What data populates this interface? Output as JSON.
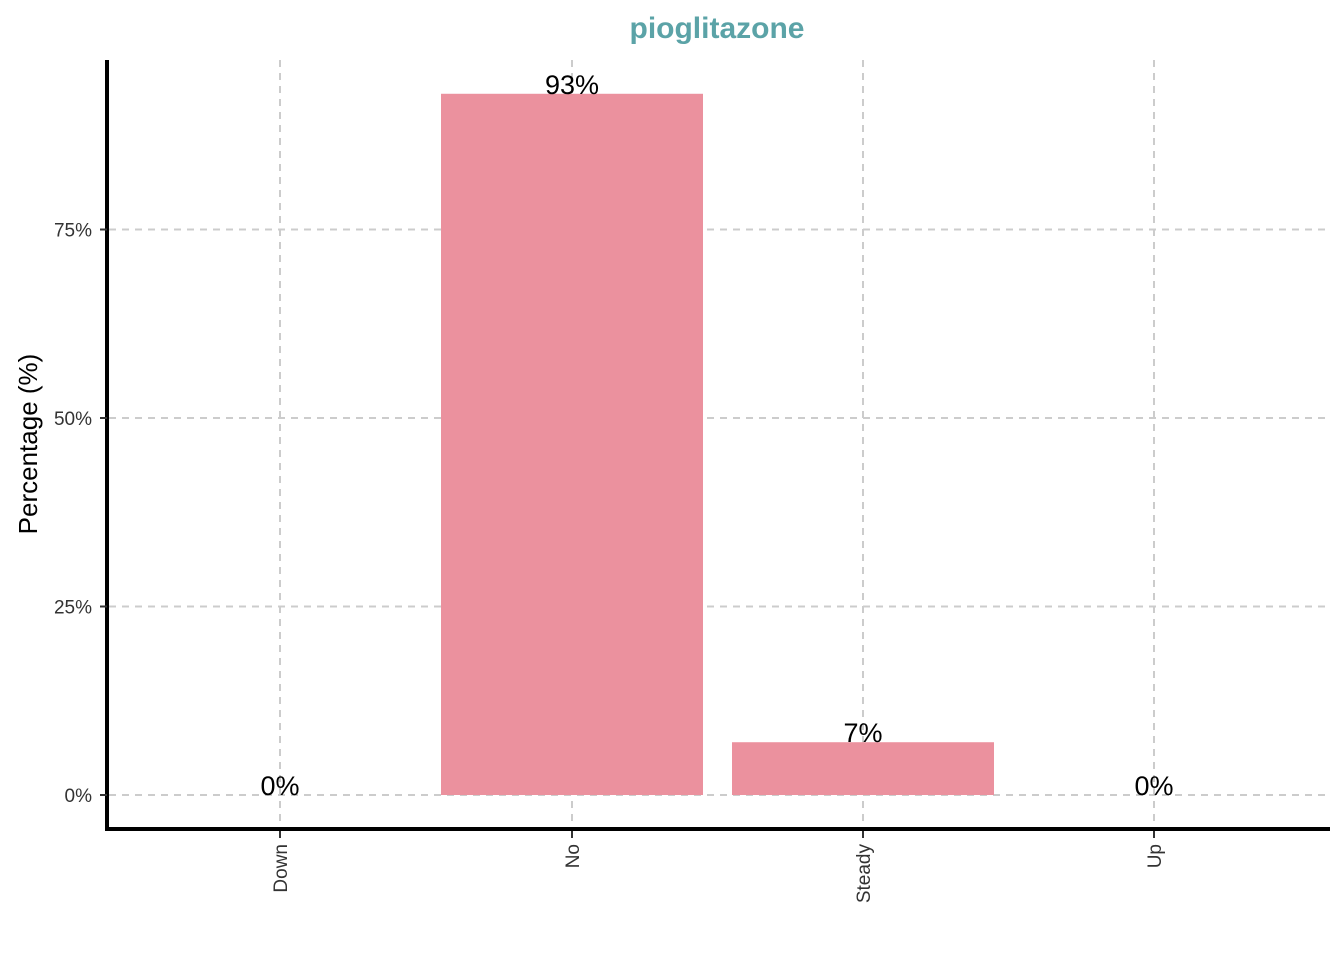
{
  "chart_data": {
    "type": "bar",
    "title": "pioglitazone",
    "xlabel": "",
    "ylabel": "Percentage (%)",
    "categories": [
      "Down",
      "No",
      "Steady",
      "Up"
    ],
    "values": [
      0,
      93,
      7,
      0
    ],
    "data_labels": [
      "0%",
      "93%",
      "7%",
      "0%"
    ],
    "ylim": [
      0,
      97
    ],
    "yticks": [
      0,
      25,
      50,
      75
    ],
    "ytick_labels": [
      "0%",
      "25%",
      "50%",
      "75%"
    ],
    "grid": true,
    "legend": "none",
    "colors": {
      "bar": "#EB919E",
      "title": "#5BA3A7"
    }
  }
}
